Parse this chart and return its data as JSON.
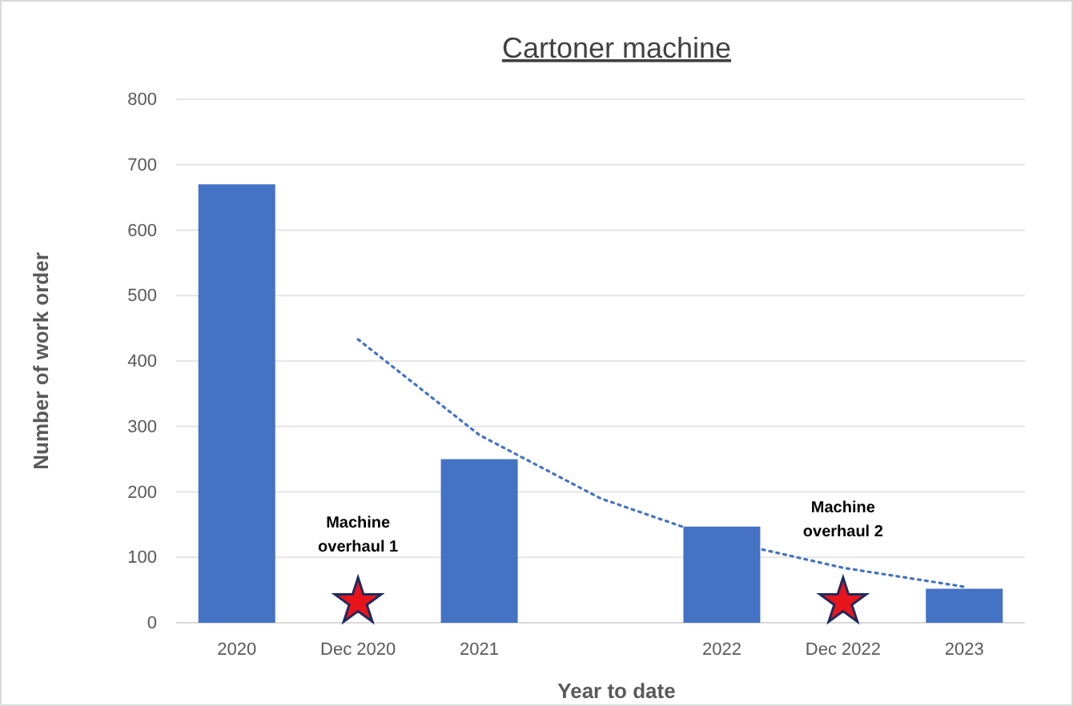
{
  "chart_data": {
    "type": "bar",
    "title": "Cartoner machine",
    "xlabel": "Year to date",
    "ylabel": "Number of work order",
    "categories": [
      "2020",
      "Dec 2020",
      "2021",
      null,
      "2022",
      "Dec 2022",
      "2023"
    ],
    "series": [
      {
        "color": "#4472c4",
        "values": [
          670,
          null,
          250,
          null,
          147,
          null,
          52
        ]
      },
      {
        "type": "line",
        "color": "#4472c4",
        "line_style": "dotted",
        "marker": "none",
        "values": [
          null,
          433,
          287,
          190,
          126,
          84,
          55
        ]
      }
    ],
    "ylim": [
      0,
      800
    ],
    "yticks": [
      0,
      100,
      200,
      300,
      400,
      500,
      600,
      700,
      800
    ],
    "grid": "y",
    "annotations": [
      "Machine overhaul 1",
      "Machine overhaul 2"
    ]
  }
}
